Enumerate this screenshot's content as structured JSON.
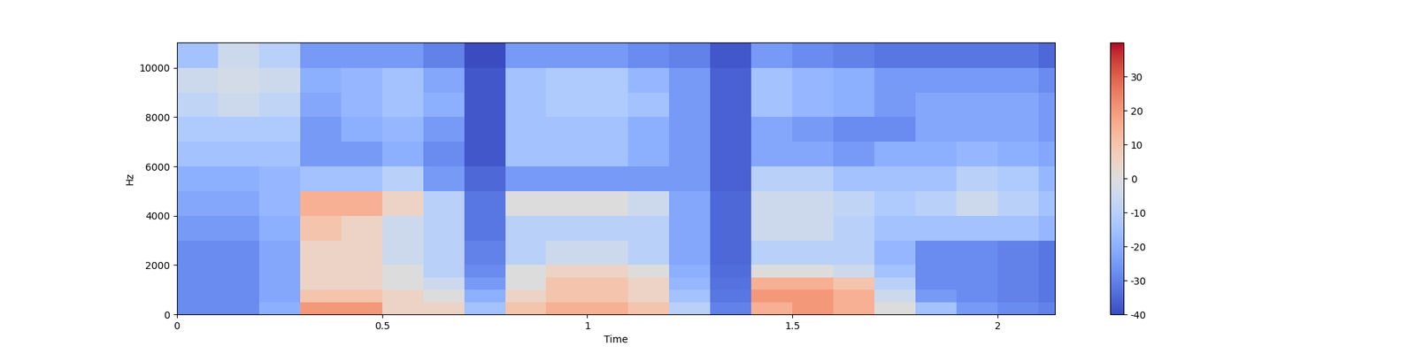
{
  "chart_data": {
    "type": "heatmap",
    "x_label": "Time",
    "y_label": "Hz",
    "color": "coolwarm",
    "xlim": [
      0,
      2.14
    ],
    "xticks": [
      0,
      0.5,
      1,
      1.5,
      2
    ],
    "ylim": [
      0,
      11025
    ],
    "yticks": [
      0,
      2000,
      4000,
      6000,
      8000,
      10000
    ],
    "x_edges": [
      0,
      0.1,
      0.2,
      0.3,
      0.4,
      0.5,
      0.6,
      0.7,
      0.8,
      0.9,
      1.0,
      1.1,
      1.2,
      1.3,
      1.4,
      1.5,
      1.6,
      1.7,
      1.8,
      1.9,
      2.0,
      2.1,
      2.14
    ],
    "y_edges": [
      0,
      500,
      1000,
      1500,
      2000,
      3000,
      4000,
      5000,
      6000,
      7000,
      8000,
      9000,
      10000,
      11025
    ],
    "cells": [
      [
        -28,
        -28,
        -20,
        20,
        20,
        5,
        5,
        -15,
        10,
        15,
        15,
        10,
        -10,
        -30,
        15,
        20,
        15,
        0,
        -15,
        -25,
        -28,
        -30
      ],
      [
        -28,
        -28,
        -22,
        10,
        10,
        5,
        0,
        -20,
        5,
        10,
        10,
        5,
        -15,
        -32,
        20,
        20,
        15,
        -5,
        -25,
        -28,
        -30,
        -32
      ],
      [
        -28,
        -28,
        -22,
        5,
        5,
        0,
        -5,
        -25,
        0,
        10,
        10,
        5,
        -18,
        -33,
        15,
        15,
        10,
        -10,
        -28,
        -28,
        -30,
        -32
      ],
      [
        -28,
        -28,
        -22,
        5,
        5,
        0,
        -10,
        -28,
        0,
        5,
        5,
        0,
        -20,
        -34,
        0,
        0,
        -5,
        -15,
        -28,
        -28,
        -30,
        -32
      ],
      [
        -28,
        -28,
        -22,
        5,
        5,
        -5,
        -10,
        -30,
        -10,
        -5,
        -5,
        -10,
        -22,
        -35,
        -10,
        -10,
        -10,
        -18,
        -28,
        -28,
        -30,
        -32
      ],
      [
        -25,
        -25,
        -20,
        10,
        5,
        -5,
        -10,
        -32,
        -10,
        -10,
        -10,
        -10,
        -22,
        -35,
        -5,
        -5,
        -10,
        -15,
        -15,
        -15,
        -15,
        -18
      ],
      [
        -22,
        -22,
        -18,
        15,
        15,
        5,
        -10,
        -32,
        0,
        0,
        0,
        -5,
        -22,
        -35,
        -5,
        -5,
        -8,
        -12,
        -10,
        -5,
        -10,
        -15
      ],
      [
        -20,
        -20,
        -18,
        -15,
        -15,
        -10,
        -25,
        -35,
        -25,
        -25,
        -25,
        -25,
        -25,
        -36,
        -10,
        -10,
        -15,
        -15,
        -15,
        -10,
        -12,
        -18
      ],
      [
        -15,
        -15,
        -15,
        -25,
        -25,
        -20,
        -28,
        -38,
        -15,
        -15,
        -15,
        -20,
        -25,
        -36,
        -22,
        -22,
        -25,
        -20,
        -20,
        -18,
        -20,
        -22
      ],
      [
        -12,
        -12,
        -12,
        -25,
        -20,
        -18,
        -25,
        -38,
        -15,
        -15,
        -15,
        -20,
        -25,
        -36,
        -22,
        -25,
        -28,
        -28,
        -22,
        -22,
        -22,
        -25
      ],
      [
        -8,
        -5,
        -8,
        -22,
        -18,
        -15,
        -20,
        -38,
        -15,
        -12,
        -12,
        -15,
        -25,
        -36,
        -15,
        -18,
        -20,
        -25,
        -22,
        -22,
        -22,
        -25
      ],
      [
        -5,
        -3,
        -5,
        -20,
        -18,
        -15,
        -22,
        -38,
        -15,
        -12,
        -12,
        -18,
        -25,
        -36,
        -15,
        -18,
        -20,
        -25,
        -25,
        -25,
        -25,
        -28
      ],
      [
        -15,
        -5,
        -10,
        -25,
        -25,
        -25,
        -30,
        -40,
        -25,
        -25,
        -25,
        -28,
        -30,
        -38,
        -25,
        -28,
        -30,
        -32,
        -32,
        -32,
        -32,
        -35
      ]
    ],
    "colorbar_lim": [
      -40,
      40
    ],
    "colorbar_ticks": [
      -40,
      -30,
      -20,
      -10,
      0,
      10,
      20,
      30
    ]
  }
}
